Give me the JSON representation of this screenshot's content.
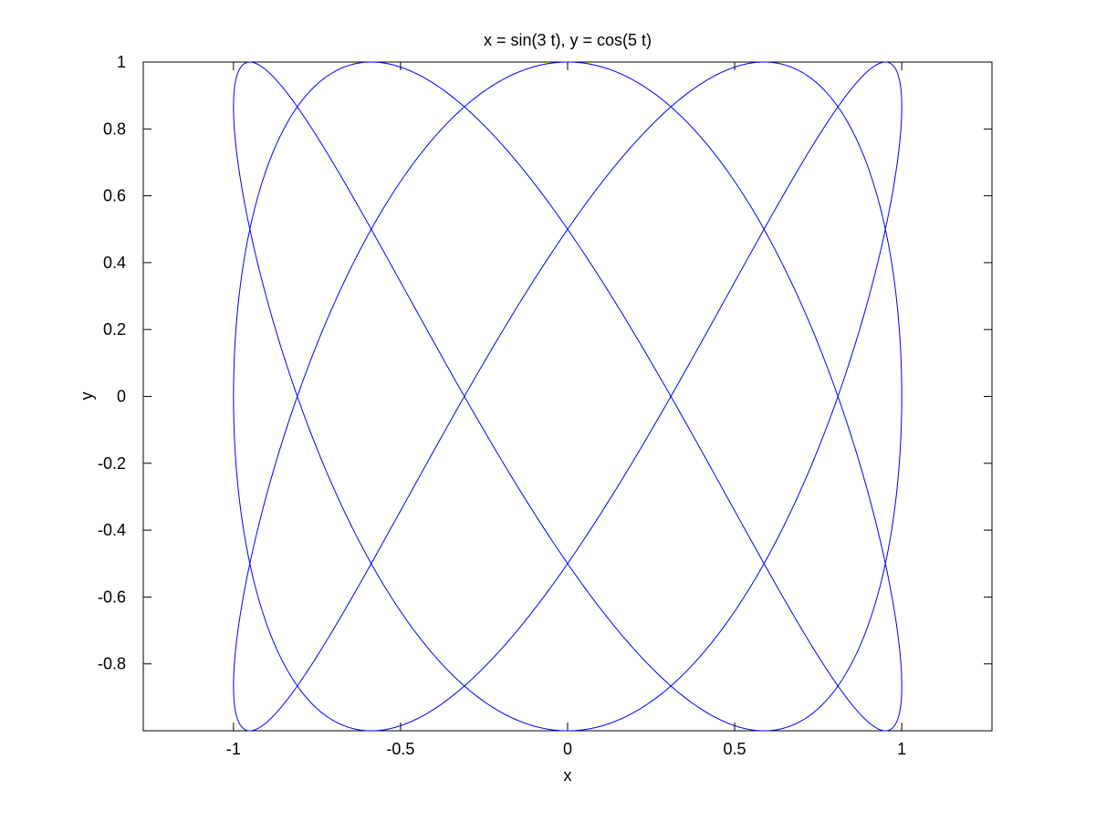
{
  "chart_data": {
    "type": "line",
    "title": "x = sin(3 t), y = cos(5 t)",
    "xlabel": "x",
    "ylabel": "y",
    "xlim": [
      -1.27,
      1.27
    ],
    "ylim": [
      -1,
      1
    ],
    "grid": false,
    "x_ticks": [
      -1,
      -0.5,
      0,
      0.5,
      1
    ],
    "x_tick_labels": [
      "-1",
      "-0.5",
      "0",
      "0.5",
      "1"
    ],
    "y_ticks": [
      -0.8,
      -0.6,
      -0.4,
      -0.2,
      0,
      0.2,
      0.4,
      0.6,
      0.8,
      1
    ],
    "y_tick_labels": [
      "-0.8",
      "-0.6",
      "-0.4",
      "-0.2",
      "0",
      "0.2",
      "0.4",
      "0.6",
      "0.8",
      "1"
    ],
    "series": [
      {
        "color": "#0000ff",
        "x_function": "sin(3 t)",
        "y_function": "cos(5 t)",
        "t_range": [
          0,
          6.283185307
        ]
      }
    ]
  }
}
